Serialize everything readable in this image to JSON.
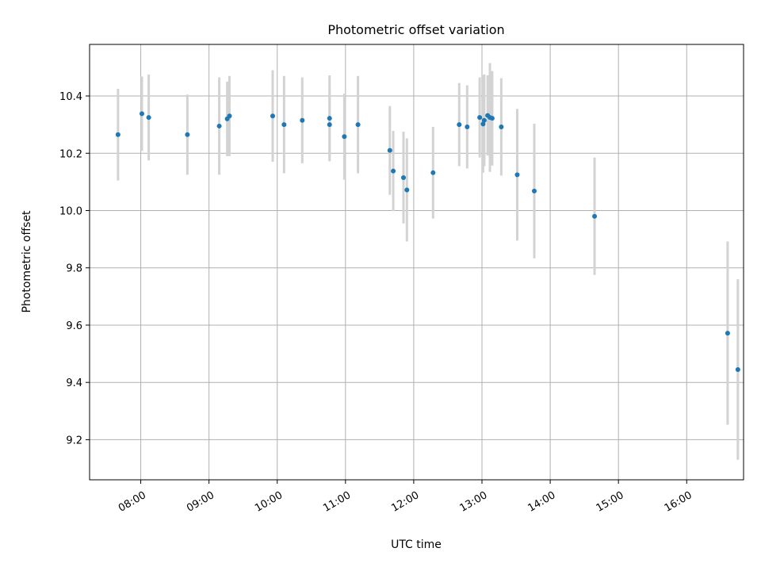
{
  "chart_data": {
    "type": "scatter",
    "title": "Photometric offset variation",
    "xlabel": "UTC time",
    "ylabel": "Photometric offset",
    "xlim": [
      "07:15",
      "16:50"
    ],
    "ylim": [
      9.06,
      10.58
    ],
    "grid": true,
    "x_ticks": [
      "08:00",
      "09:00",
      "10:00",
      "11:00",
      "12:00",
      "13:00",
      "14:00",
      "15:00",
      "16:00"
    ],
    "y_ticks": [
      9.2,
      9.4,
      9.6,
      9.8,
      10.0,
      10.2,
      10.4
    ],
    "y_tick_labels": [
      "9.2",
      "9.4",
      "9.6",
      "9.8",
      "10.0",
      "10.2",
      "10.4"
    ],
    "colors": {
      "point": "#1f77b4",
      "errorbar": "#d3d3d3",
      "grid": "#b0b0b0"
    },
    "series": [
      {
        "points": [
          {
            "t": "07:40",
            "y": 10.265,
            "yerr": 0.16
          },
          {
            "t": "08:01",
            "y": 10.338,
            "yerr": 0.13
          },
          {
            "t": "08:07",
            "y": 10.325,
            "yerr": 0.15
          },
          {
            "t": "08:41",
            "y": 10.265,
            "yerr": 0.14
          },
          {
            "t": "09:09",
            "y": 10.295,
            "yerr": 0.17
          },
          {
            "t": "09:16",
            "y": 10.32,
            "yerr": 0.13
          },
          {
            "t": "09:18",
            "y": 10.33,
            "yerr": 0.14
          },
          {
            "t": "09:56",
            "y": 10.33,
            "yerr": 0.16
          },
          {
            "t": "10:06",
            "y": 10.3,
            "yerr": 0.17
          },
          {
            "t": "10:22",
            "y": 10.315,
            "yerr": 0.15
          },
          {
            "t": "10:46",
            "y": 10.3,
            "yerr": 0.12
          },
          {
            "t": "10:46",
            "y": 10.322,
            "yerr": 0.15
          },
          {
            "t": "10:59",
            "y": 10.258,
            "yerr": 0.15
          },
          {
            "t": "11:11",
            "y": 10.3,
            "yerr": 0.17
          },
          {
            "t": "11:39",
            "y": 10.21,
            "yerr": 0.155
          },
          {
            "t": "11:42",
            "y": 10.138,
            "yerr": 0.14
          },
          {
            "t": "11:51",
            "y": 10.115,
            "yerr": 0.16
          },
          {
            "t": "11:54",
            "y": 10.072,
            "yerr": 0.18
          },
          {
            "t": "12:17",
            "y": 10.132,
            "yerr": 0.16
          },
          {
            "t": "12:40",
            "y": 10.3,
            "yerr": 0.145
          },
          {
            "t": "12:47",
            "y": 10.292,
            "yerr": 0.145
          },
          {
            "t": "12:58",
            "y": 10.325,
            "yerr": 0.14
          },
          {
            "t": "13:01",
            "y": 10.302,
            "yerr": 0.17
          },
          {
            "t": "13:02",
            "y": 10.315,
            "yerr": 0.16
          },
          {
            "t": "13:05",
            "y": 10.332,
            "yerr": 0.14
          },
          {
            "t": "13:07",
            "y": 10.325,
            "yerr": 0.19
          },
          {
            "t": "13:09",
            "y": 10.322,
            "yerr": 0.165
          },
          {
            "t": "13:17",
            "y": 10.292,
            "yerr": 0.17
          },
          {
            "t": "13:31",
            "y": 10.125,
            "yerr": 0.23
          },
          {
            "t": "13:46",
            "y": 10.068,
            "yerr": 0.235
          },
          {
            "t": "14:39",
            "y": 9.98,
            "yerr": 0.205
          },
          {
            "t": "16:36",
            "y": 9.572,
            "yerr": 0.32
          },
          {
            "t": "16:45",
            "y": 9.445,
            "yerr": 0.315
          }
        ]
      }
    ]
  }
}
